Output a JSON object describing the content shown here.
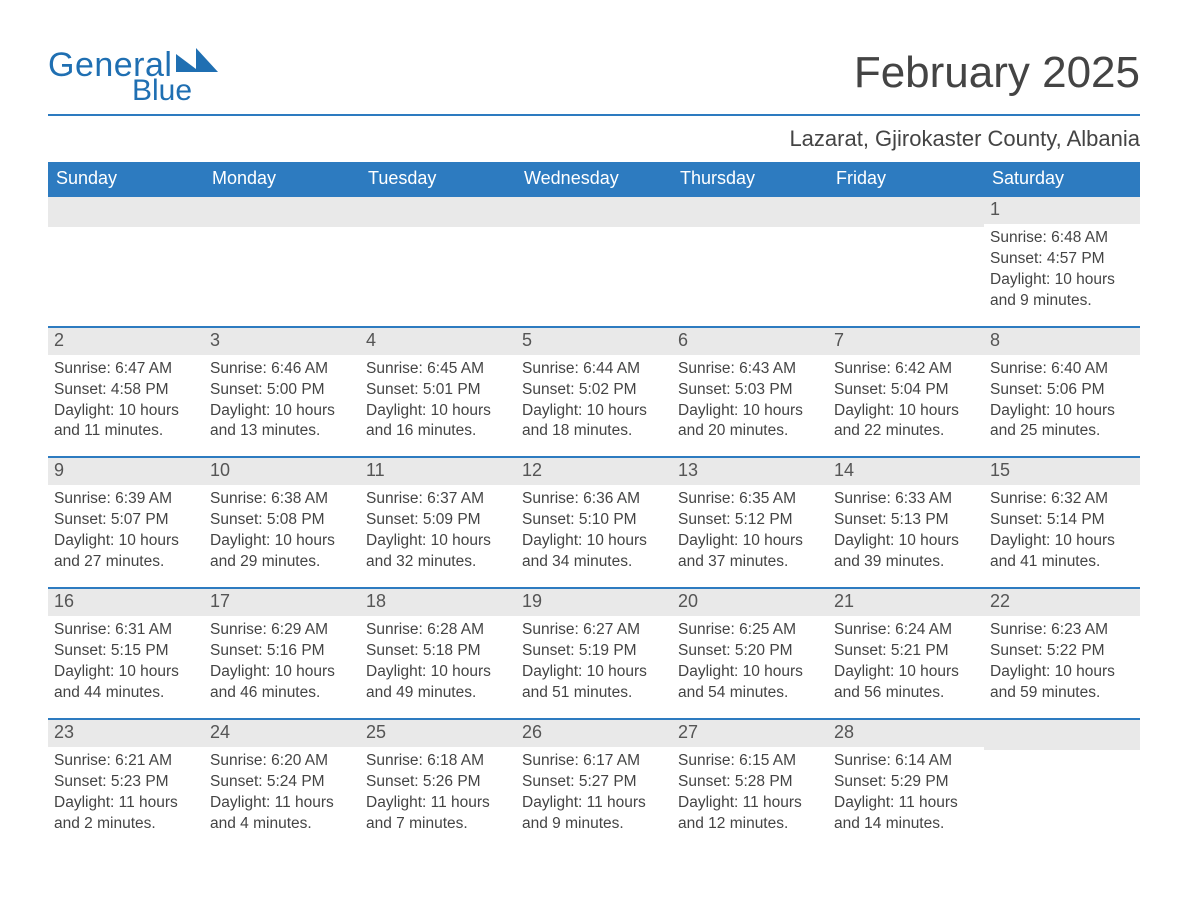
{
  "logo": {
    "text1": "General",
    "text2": "Blue"
  },
  "title": "February 2025",
  "subtitle": "Lazarat, Gjirokaster County, Albania",
  "colors": {
    "header_bg": "#2d7bc0",
    "header_text": "#ffffff",
    "rule": "#2d7bc0",
    "daynum_bg": "#e9e9e9",
    "text": "#444444",
    "logo": "#1f6fb2",
    "background": "#ffffff"
  },
  "typography": {
    "title_fontsize": 44,
    "subtitle_fontsize": 22,
    "header_fontsize": 18,
    "body_fontsize": 15.5
  },
  "weekdays": [
    "Sunday",
    "Monday",
    "Tuesday",
    "Wednesday",
    "Thursday",
    "Friday",
    "Saturday"
  ],
  "labels": {
    "sunrise": "Sunrise:",
    "sunset": "Sunset:",
    "daylight": "Daylight:"
  },
  "weeks": [
    [
      null,
      null,
      null,
      null,
      null,
      null,
      {
        "d": "1",
        "sr": "6:48 AM",
        "ss": "4:57 PM",
        "dl": "10 hours and 9 minutes."
      }
    ],
    [
      {
        "d": "2",
        "sr": "6:47 AM",
        "ss": "4:58 PM",
        "dl": "10 hours and 11 minutes."
      },
      {
        "d": "3",
        "sr": "6:46 AM",
        "ss": "5:00 PM",
        "dl": "10 hours and 13 minutes."
      },
      {
        "d": "4",
        "sr": "6:45 AM",
        "ss": "5:01 PM",
        "dl": "10 hours and 16 minutes."
      },
      {
        "d": "5",
        "sr": "6:44 AM",
        "ss": "5:02 PM",
        "dl": "10 hours and 18 minutes."
      },
      {
        "d": "6",
        "sr": "6:43 AM",
        "ss": "5:03 PM",
        "dl": "10 hours and 20 minutes."
      },
      {
        "d": "7",
        "sr": "6:42 AM",
        "ss": "5:04 PM",
        "dl": "10 hours and 22 minutes."
      },
      {
        "d": "8",
        "sr": "6:40 AM",
        "ss": "5:06 PM",
        "dl": "10 hours and 25 minutes."
      }
    ],
    [
      {
        "d": "9",
        "sr": "6:39 AM",
        "ss": "5:07 PM",
        "dl": "10 hours and 27 minutes."
      },
      {
        "d": "10",
        "sr": "6:38 AM",
        "ss": "5:08 PM",
        "dl": "10 hours and 29 minutes."
      },
      {
        "d": "11",
        "sr": "6:37 AM",
        "ss": "5:09 PM",
        "dl": "10 hours and 32 minutes."
      },
      {
        "d": "12",
        "sr": "6:36 AM",
        "ss": "5:10 PM",
        "dl": "10 hours and 34 minutes."
      },
      {
        "d": "13",
        "sr": "6:35 AM",
        "ss": "5:12 PM",
        "dl": "10 hours and 37 minutes."
      },
      {
        "d": "14",
        "sr": "6:33 AM",
        "ss": "5:13 PM",
        "dl": "10 hours and 39 minutes."
      },
      {
        "d": "15",
        "sr": "6:32 AM",
        "ss": "5:14 PM",
        "dl": "10 hours and 41 minutes."
      }
    ],
    [
      {
        "d": "16",
        "sr": "6:31 AM",
        "ss": "5:15 PM",
        "dl": "10 hours and 44 minutes."
      },
      {
        "d": "17",
        "sr": "6:29 AM",
        "ss": "5:16 PM",
        "dl": "10 hours and 46 minutes."
      },
      {
        "d": "18",
        "sr": "6:28 AM",
        "ss": "5:18 PM",
        "dl": "10 hours and 49 minutes."
      },
      {
        "d": "19",
        "sr": "6:27 AM",
        "ss": "5:19 PM",
        "dl": "10 hours and 51 minutes."
      },
      {
        "d": "20",
        "sr": "6:25 AM",
        "ss": "5:20 PM",
        "dl": "10 hours and 54 minutes."
      },
      {
        "d": "21",
        "sr": "6:24 AM",
        "ss": "5:21 PM",
        "dl": "10 hours and 56 minutes."
      },
      {
        "d": "22",
        "sr": "6:23 AM",
        "ss": "5:22 PM",
        "dl": "10 hours and 59 minutes."
      }
    ],
    [
      {
        "d": "23",
        "sr": "6:21 AM",
        "ss": "5:23 PM",
        "dl": "11 hours and 2 minutes."
      },
      {
        "d": "24",
        "sr": "6:20 AM",
        "ss": "5:24 PM",
        "dl": "11 hours and 4 minutes."
      },
      {
        "d": "25",
        "sr": "6:18 AM",
        "ss": "5:26 PM",
        "dl": "11 hours and 7 minutes."
      },
      {
        "d": "26",
        "sr": "6:17 AM",
        "ss": "5:27 PM",
        "dl": "11 hours and 9 minutes."
      },
      {
        "d": "27",
        "sr": "6:15 AM",
        "ss": "5:28 PM",
        "dl": "11 hours and 12 minutes."
      },
      {
        "d": "28",
        "sr": "6:14 AM",
        "ss": "5:29 PM",
        "dl": "11 hours and 14 minutes."
      },
      null
    ]
  ]
}
